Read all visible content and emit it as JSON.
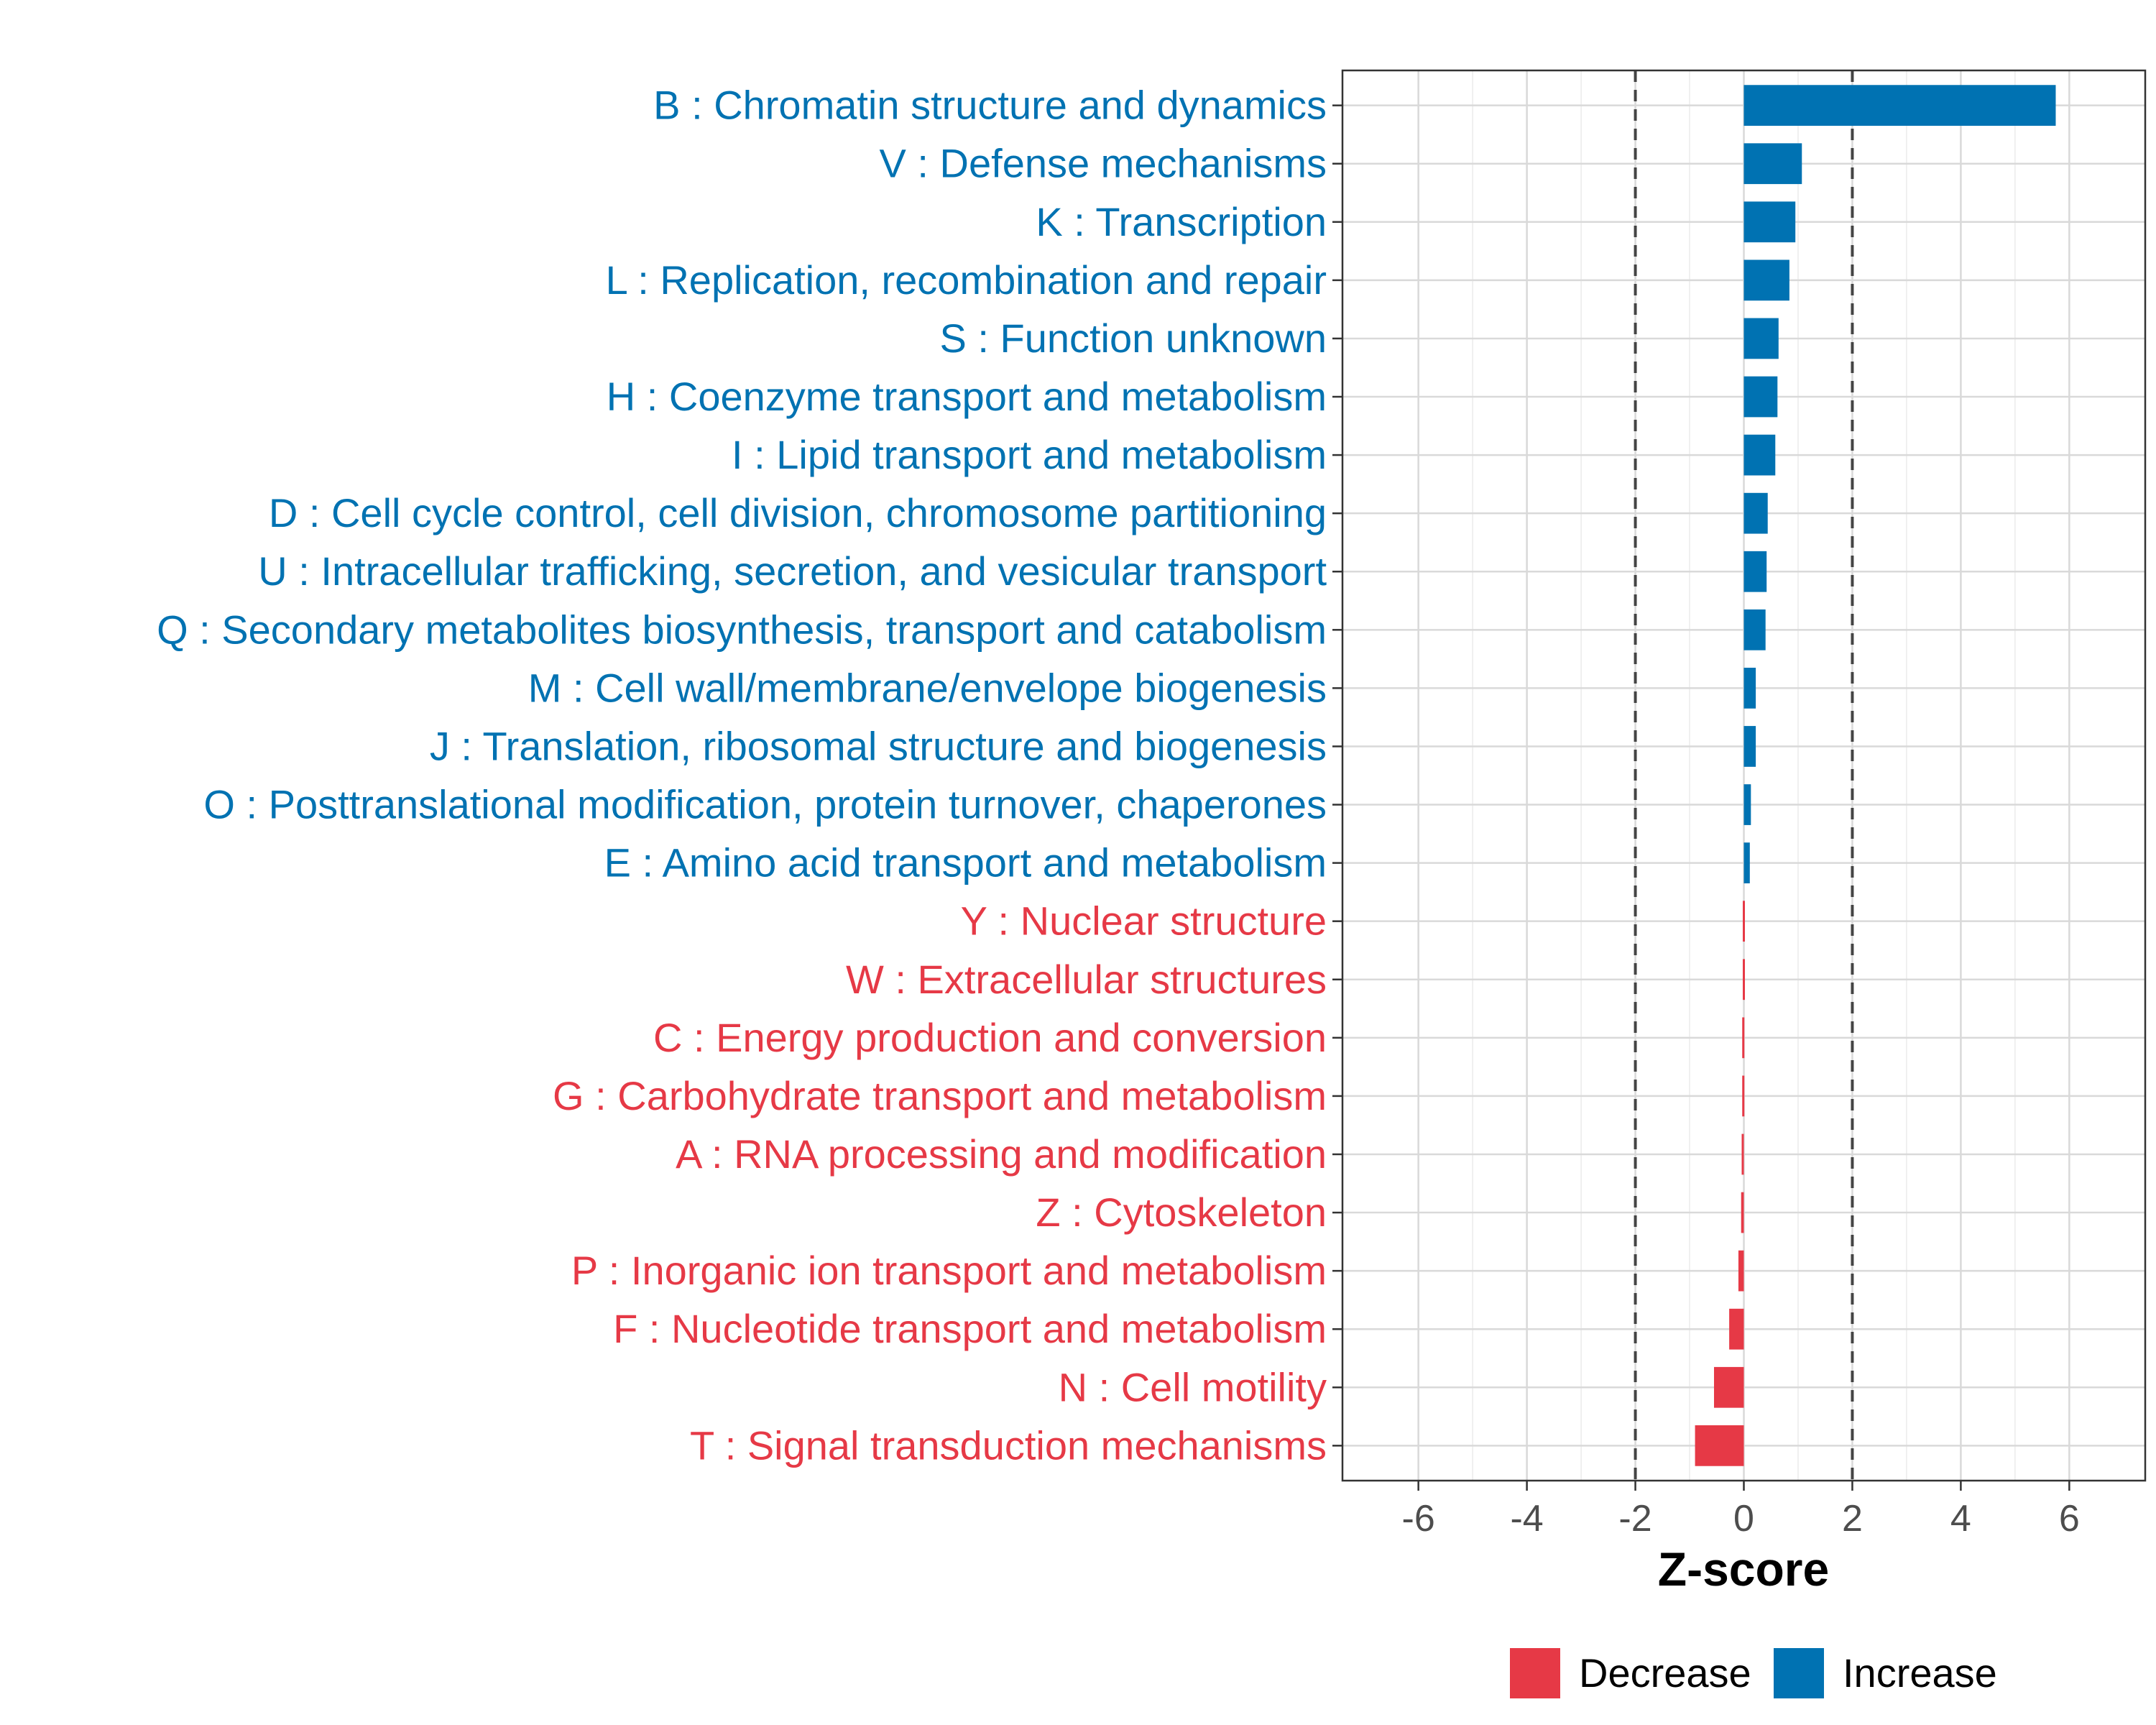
{
  "chart_data": {
    "type": "bar",
    "orientation": "horizontal",
    "xlabel": "Z-score",
    "xlim": [
      -7.4,
      7.4
    ],
    "xticks": [
      -6,
      -4,
      -2,
      0,
      2,
      4,
      6
    ],
    "xtick_labels": [
      "-6",
      "-4",
      "-2",
      "0",
      "2",
      "4",
      "6"
    ],
    "reference_lines": [
      -2,
      2
    ],
    "grid": true,
    "colors": {
      "Increase": "#0072b2",
      "Decrease": "#e63946"
    },
    "categories": [
      "B : Chromatin structure and dynamics",
      "V : Defense mechanisms",
      "K : Transcription",
      "L : Replication, recombination and repair",
      "S : Function unknown",
      "H : Coenzyme transport and metabolism",
      "I : Lipid transport and metabolism",
      "D : Cell cycle control, cell division, chromosome partitioning",
      "U : Intracellular trafficking, secretion, and vesicular transport",
      "Q : Secondary metabolites biosynthesis, transport and catabolism",
      "M : Cell wall/membrane/envelope biogenesis",
      "J : Translation, ribosomal structure and biogenesis",
      "O : Posttranslational modification, protein turnover, chaperones",
      "E : Amino acid transport and metabolism",
      "Y : Nuclear structure",
      "W : Extracellular structures",
      "C : Energy production and conversion",
      "G : Carbohydrate transport and metabolism",
      "A : RNA processing and modification",
      "Z : Cytoskeleton",
      "P : Inorganic ion transport and metabolism",
      "F : Nucleotide transport and metabolism",
      "N : Cell motility",
      "T : Signal transduction mechanisms"
    ],
    "values": [
      5.75,
      1.07,
      0.95,
      0.84,
      0.64,
      0.62,
      0.58,
      0.44,
      0.42,
      0.4,
      0.22,
      0.22,
      0.13,
      0.11,
      -0.02,
      -0.02,
      -0.03,
      -0.03,
      -0.04,
      -0.05,
      -0.1,
      -0.27,
      -0.55,
      -0.9
    ],
    "groups": [
      "Increase",
      "Increase",
      "Increase",
      "Increase",
      "Increase",
      "Increase",
      "Increase",
      "Increase",
      "Increase",
      "Increase",
      "Increase",
      "Increase",
      "Increase",
      "Increase",
      "Decrease",
      "Decrease",
      "Decrease",
      "Decrease",
      "Decrease",
      "Decrease",
      "Decrease",
      "Decrease",
      "Decrease",
      "Decrease"
    ],
    "legend": {
      "placement": "bottom-right",
      "entries": [
        {
          "label": "Decrease",
          "color": "#e63946"
        },
        {
          "label": "Increase",
          "color": "#0072b2"
        }
      ]
    }
  }
}
